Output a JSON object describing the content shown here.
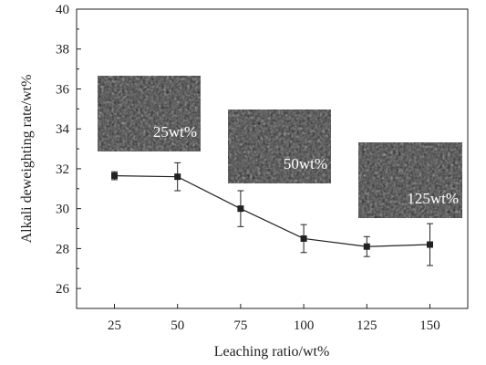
{
  "chart_data": {
    "type": "line",
    "xlabel": "Leaching ratio/wt%",
    "ylabel": "Alkali deweighting rate/wt%",
    "x_ticks": [
      "25",
      "50",
      "75",
      "100",
      "125",
      "150"
    ],
    "y_ticks": [
      "26",
      "28",
      "30",
      "32",
      "34",
      "36",
      "38",
      "40"
    ],
    "xlim": [
      10,
      165
    ],
    "ylim": [
      25,
      40
    ],
    "grid": false,
    "series": [
      {
        "x": [
          25,
          50,
          75,
          100,
          125,
          150
        ],
        "y": [
          31.65,
          31.6,
          30.0,
          28.5,
          28.1,
          28.2
        ],
        "error": [
          0.2,
          0.7,
          0.9,
          0.7,
          0.5,
          1.05
        ],
        "marker": "square",
        "color": "#222222"
      }
    ],
    "insets": [
      {
        "label": "25wt%"
      },
      {
        "label": "50wt%"
      },
      {
        "label": "125wt%"
      }
    ]
  }
}
